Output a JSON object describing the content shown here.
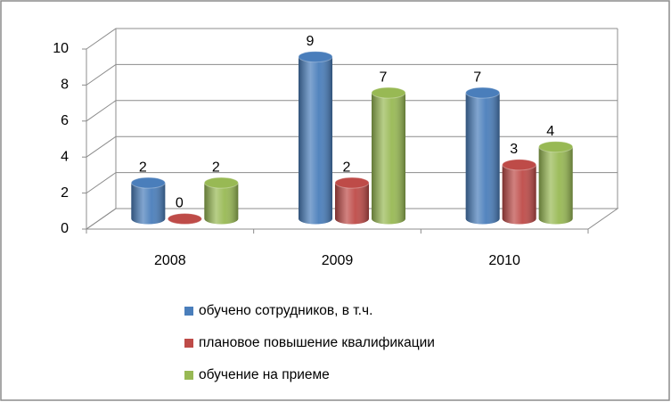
{
  "chart_data": {
    "type": "bar3d",
    "categories": [
      "2008",
      "2009",
      "2010"
    ],
    "series": [
      {
        "name": "обучено сотрудников, в т.ч.",
        "color": "#4a7ebb",
        "values": [
          2,
          9,
          7
        ]
      },
      {
        "name": "плановое повышение квалификации",
        "color": "#be4b48",
        "values": [
          0,
          2,
          3
        ]
      },
      {
        "name": "обучение на приеме",
        "color": "#98b954",
        "values": [
          2,
          7,
          4
        ]
      }
    ],
    "ylim": [
      0,
      10
    ],
    "yticks": [
      0,
      2,
      4,
      6,
      8,
      10
    ],
    "grid": true,
    "legend": "bottom"
  }
}
